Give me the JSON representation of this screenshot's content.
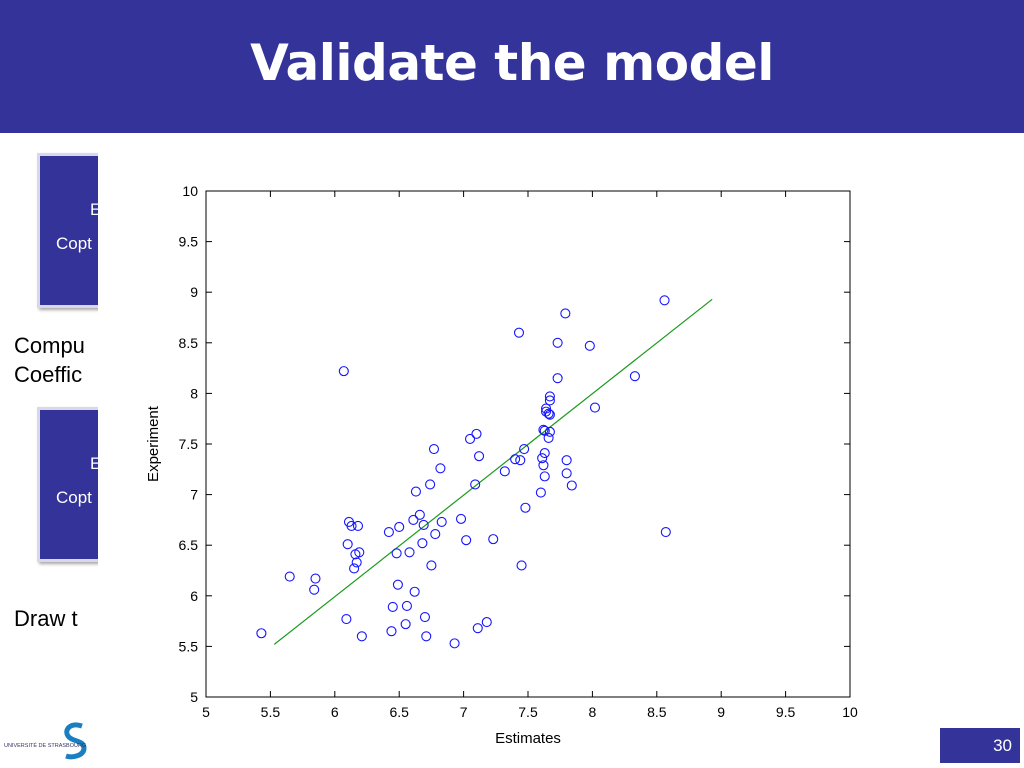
{
  "slide": {
    "title": "Validate the model",
    "box1": {
      "line1": "E",
      "line2": "Copt"
    },
    "box2": {
      "line1": "E",
      "line2": "Copt"
    },
    "text1": {
      "line1": "Compu",
      "line2": "Coeffic"
    },
    "text2": "Draw t",
    "footer_logo_text": "UNIVERSITÉ DE STRASBOURG",
    "page_number": "30"
  },
  "colors": {
    "header": "#33339a",
    "marker": "#1515ff",
    "fit_line": "#1a9a1a"
  },
  "chart_data": {
    "type": "scatter",
    "title": "",
    "xlabel": "Estimates",
    "ylabel": "Experiment",
    "xlim": [
      5,
      10
    ],
    "ylim": [
      5,
      10
    ],
    "xticks": [
      "5",
      "5.5",
      "6",
      "6.5",
      "7",
      "7.5",
      "8",
      "8.5",
      "9",
      "9.5",
      "10"
    ],
    "yticks": [
      "5",
      "5.5",
      "6",
      "6.5",
      "7",
      "7.5",
      "8",
      "8.5",
      "9",
      "9.5",
      "10"
    ],
    "grid": false,
    "fit_line": {
      "x": [
        5.53,
        8.93
      ],
      "y": [
        5.52,
        8.93
      ]
    },
    "points": [
      [
        5.43,
        5.63
      ],
      [
        5.65,
        6.19
      ],
      [
        5.84,
        6.06
      ],
      [
        5.85,
        6.17
      ],
      [
        6.07,
        8.22
      ],
      [
        6.09,
        5.77
      ],
      [
        6.1,
        6.51
      ],
      [
        6.11,
        6.73
      ],
      [
        6.13,
        6.69
      ],
      [
        6.15,
        6.27
      ],
      [
        6.16,
        6.41
      ],
      [
        6.17,
        6.33
      ],
      [
        6.18,
        6.69
      ],
      [
        6.19,
        6.43
      ],
      [
        6.21,
        5.6
      ],
      [
        6.42,
        6.63
      ],
      [
        6.44,
        5.65
      ],
      [
        6.45,
        5.89
      ],
      [
        6.48,
        6.42
      ],
      [
        6.49,
        6.11
      ],
      [
        6.5,
        6.68
      ],
      [
        6.55,
        5.72
      ],
      [
        6.56,
        5.9
      ],
      [
        6.58,
        6.43
      ],
      [
        6.61,
        6.75
      ],
      [
        6.62,
        6.04
      ],
      [
        6.63,
        7.03
      ],
      [
        6.66,
        6.8
      ],
      [
        6.68,
        6.52
      ],
      [
        6.69,
        6.7
      ],
      [
        6.7,
        5.79
      ],
      [
        6.71,
        5.6
      ],
      [
        6.74,
        7.1
      ],
      [
        6.75,
        6.3
      ],
      [
        6.77,
        7.45
      ],
      [
        6.78,
        6.61
      ],
      [
        6.82,
        7.26
      ],
      [
        6.83,
        6.73
      ],
      [
        6.93,
        5.53
      ],
      [
        6.98,
        6.76
      ],
      [
        7.02,
        6.55
      ],
      [
        7.05,
        7.55
      ],
      [
        7.09,
        7.1
      ],
      [
        7.1,
        7.6
      ],
      [
        7.11,
        5.68
      ],
      [
        7.12,
        7.38
      ],
      [
        7.18,
        5.74
      ],
      [
        7.23,
        6.56
      ],
      [
        7.32,
        7.23
      ],
      [
        7.4,
        7.35
      ],
      [
        7.43,
        8.6
      ],
      [
        7.44,
        7.34
      ],
      [
        7.45,
        6.3
      ],
      [
        7.47,
        7.45
      ],
      [
        7.48,
        6.87
      ],
      [
        7.6,
        7.02
      ],
      [
        7.61,
        7.36
      ],
      [
        7.62,
        7.64
      ],
      [
        7.62,
        7.29
      ],
      [
        7.63,
        7.63
      ],
      [
        7.63,
        7.41
      ],
      [
        7.63,
        7.18
      ],
      [
        7.64,
        7.82
      ],
      [
        7.64,
        7.85
      ],
      [
        7.66,
        7.8
      ],
      [
        7.66,
        7.56
      ],
      [
        7.67,
        7.62
      ],
      [
        7.67,
        7.79
      ],
      [
        7.67,
        7.93
      ],
      [
        7.67,
        7.97
      ],
      [
        7.73,
        8.15
      ],
      [
        7.73,
        8.5
      ],
      [
        7.79,
        8.79
      ],
      [
        7.8,
        7.34
      ],
      [
        7.8,
        7.21
      ],
      [
        7.84,
        7.09
      ],
      [
        7.98,
        8.47
      ],
      [
        8.02,
        7.86
      ],
      [
        8.33,
        8.17
      ],
      [
        8.56,
        8.92
      ],
      [
        8.57,
        6.63
      ]
    ]
  }
}
